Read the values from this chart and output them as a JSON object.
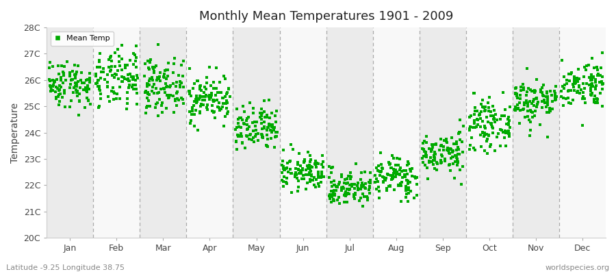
{
  "title": "Monthly Mean Temperatures 1901 - 2009",
  "ylabel": "Temperature",
  "subtitle_left": "Latitude -9.25 Longitude 38.75",
  "subtitle_right": "worldspecies.org",
  "months": [
    "Jan",
    "Feb",
    "Mar",
    "Apr",
    "May",
    "Jun",
    "Jul",
    "Aug",
    "Sep",
    "Oct",
    "Nov",
    "Dec"
  ],
  "month_positions": [
    0.5,
    1.5,
    2.5,
    3.5,
    4.5,
    5.5,
    6.5,
    7.5,
    8.5,
    9.5,
    10.5,
    11.5
  ],
  "ylim": [
    20.0,
    28.0
  ],
  "ytick_labels": [
    "20C",
    "21C",
    "22C",
    "23C",
    "24C",
    "25C",
    "26C",
    "27C",
    "28C"
  ],
  "ytick_values": [
    20,
    21,
    22,
    23,
    24,
    25,
    26,
    27,
    28
  ],
  "marker_color": "#00aa00",
  "marker_size": 5,
  "background_color": "#ffffff",
  "plot_bg_color": "#ffffff",
  "legend_label": "Mean Temp",
  "band_colors": [
    "#ebebeb",
    "#f8f8f8"
  ],
  "monthly_mean_temps": [
    25.85,
    26.0,
    25.8,
    25.3,
    24.1,
    22.5,
    21.9,
    22.3,
    23.2,
    24.3,
    25.2,
    25.85
  ],
  "monthly_std": [
    0.45,
    0.55,
    0.5,
    0.45,
    0.45,
    0.35,
    0.35,
    0.4,
    0.4,
    0.45,
    0.45,
    0.45
  ],
  "n_years": 109,
  "random_seed": 42
}
